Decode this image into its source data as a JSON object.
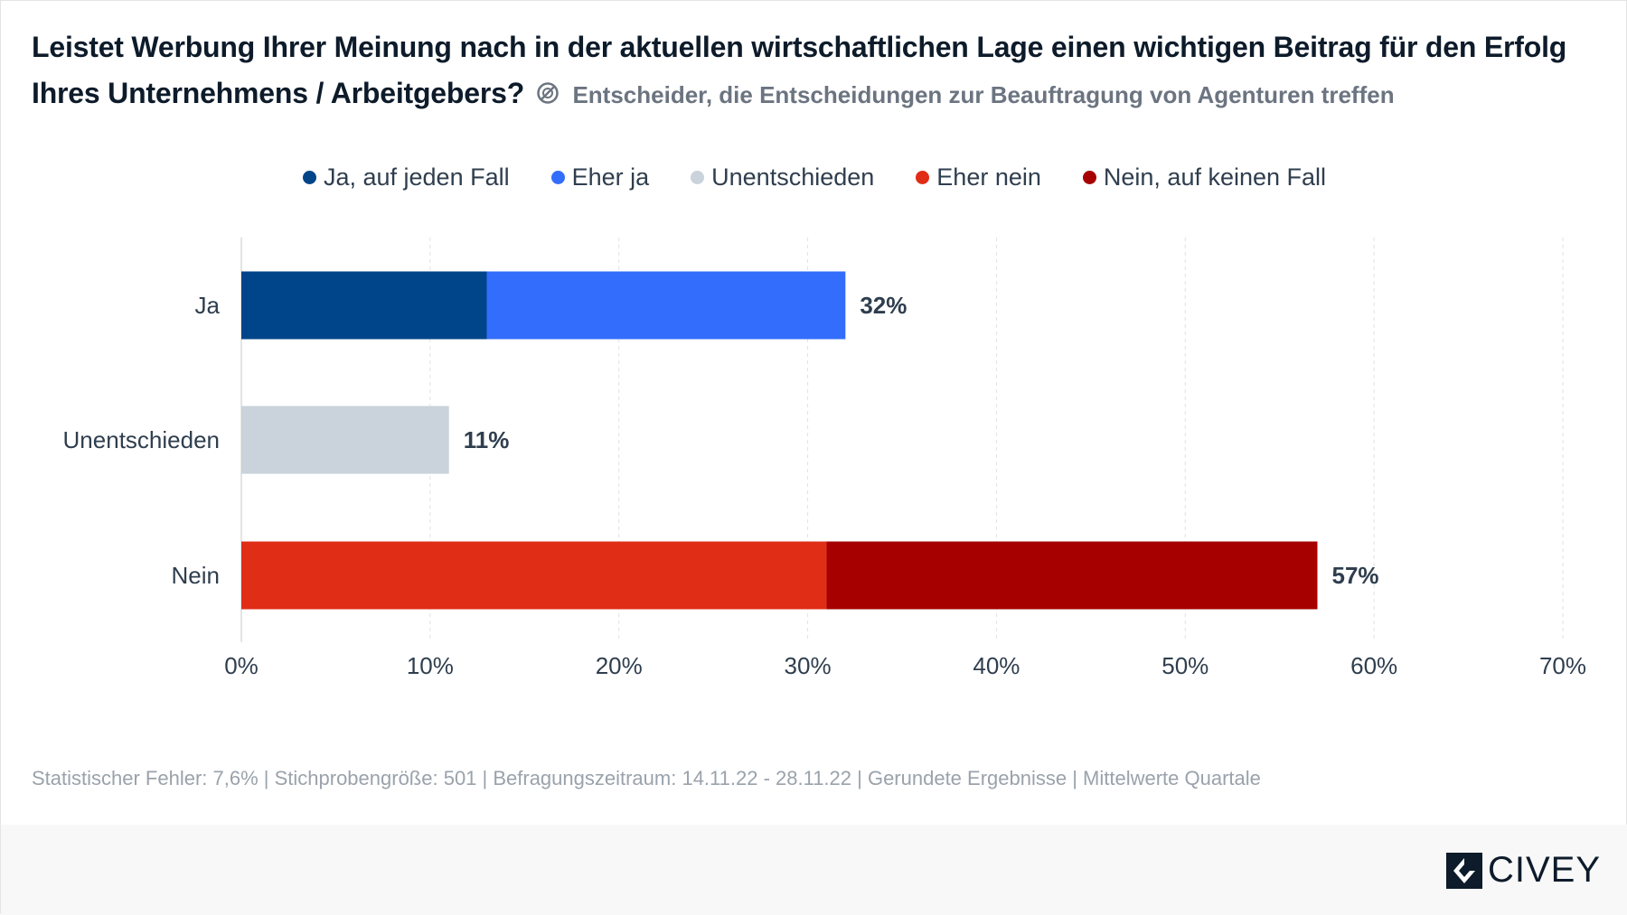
{
  "title": "Leistet Werbung Ihrer Meinung nach in der aktuellen wirtschaftlichen Lage einen wichtigen Beitrag für den Erfolg Ihres Unternehmens / Arbeitgebers?",
  "subtitle": "Entscheider, die Entscheidungen zur Beauftragung von Agenturen treffen",
  "footer_note": "Statistischer Fehler: 7,6% | Stichprobengröße: 501 | Befragungszeitraum: 14.11.22 - 28.11.22 | Gerundete Ergebnisse | Mittelwerte Quartale",
  "logo_text": "CIVEY",
  "chart_data": {
    "type": "bar",
    "orientation": "horizontal",
    "stacked": true,
    "categories": [
      "Ja",
      "Unentschieden",
      "Nein"
    ],
    "series": [
      {
        "name": "Ja, auf jeden Fall",
        "color": "#004489",
        "values": [
          13,
          0,
          0
        ]
      },
      {
        "name": "Eher ja",
        "color": "#336dfb",
        "values": [
          19,
          0,
          0
        ]
      },
      {
        "name": "Unentschieden",
        "color": "#cad3db",
        "values": [
          0,
          11,
          0
        ]
      },
      {
        "name": "Eher nein",
        "color": "#e02d15",
        "values": [
          0,
          0,
          31
        ]
      },
      {
        "name": "Nein, auf keinen Fall",
        "color": "#a60000",
        "values": [
          0,
          0,
          26
        ]
      }
    ],
    "totals": [
      "32%",
      "11%",
      "57%"
    ],
    "xlim": [
      0,
      70
    ],
    "xticks": [
      "0%",
      "10%",
      "20%",
      "30%",
      "40%",
      "50%",
      "60%",
      "70%"
    ],
    "grid": true,
    "legend": "top-center"
  }
}
